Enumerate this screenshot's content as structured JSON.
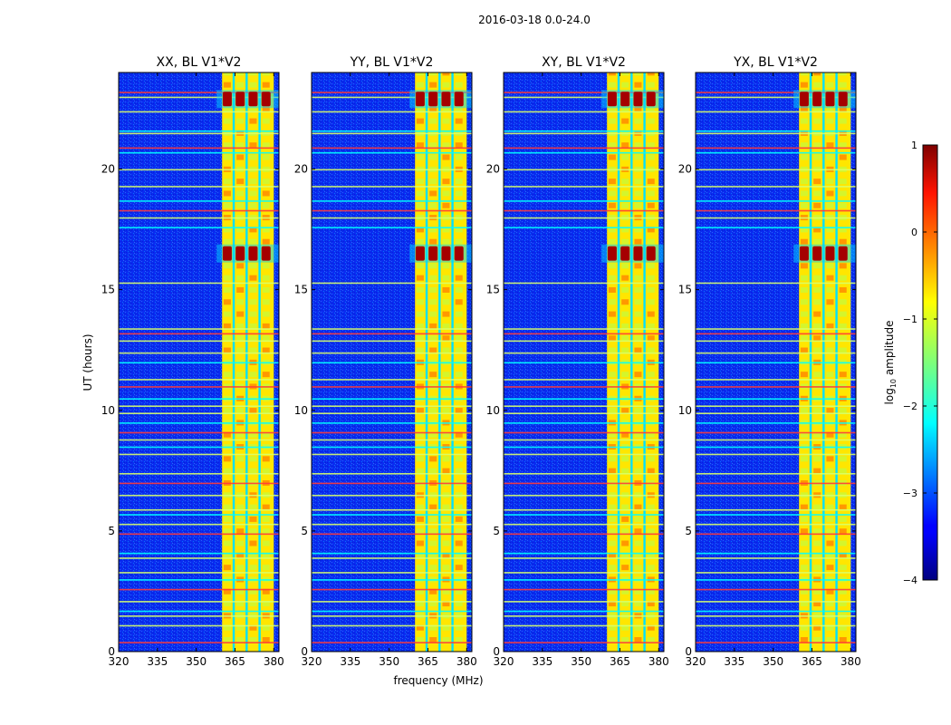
{
  "chart_data": {
    "type": "heatmap",
    "suptitle": "2016-03-18 0.0-24.0",
    "xlabel": "frequency (MHz)",
    "ylabel": "UT (hours)",
    "xlim": [
      320,
      382
    ],
    "ylim": [
      0,
      24
    ],
    "x_ticks": [
      320,
      335,
      350,
      365,
      380
    ],
    "y_ticks": [
      0,
      5,
      10,
      15,
      20
    ],
    "panels": [
      {
        "title": "XX, BL V1*V2",
        "burst_hours": [
          16.2,
          16.8
        ]
      },
      {
        "title": "YY, BL V1*V2",
        "burst_hours": [
          16.2,
          16.8
        ]
      },
      {
        "title": "XY, BL V1*V2",
        "burst_hours": [
          16.2,
          16.8
        ]
      },
      {
        "title": "YX, BL V1*V2",
        "burst_hours": [
          16.2,
          16.8
        ]
      }
    ],
    "active_band_mhz": [
      360,
      380
    ],
    "band_channels_mhz": [
      362,
      367,
      372,
      377
    ],
    "top_burst_hours": [
      22.6,
      23.2
    ],
    "rfi_lines_hours": [
      0.4,
      1.1,
      1.5,
      1.7,
      2.1,
      2.6,
      3.0,
      3.3,
      3.9,
      4.1,
      4.9,
      5.3,
      5.7,
      5.9,
      6.5,
      7.0,
      7.4,
      8.2,
      8.5,
      8.8,
      9.1,
      9.5,
      9.9,
      10.2,
      10.5,
      11.0,
      11.3,
      12.0,
      12.4,
      12.9,
      13.2,
      13.4,
      15.3,
      17.6,
      18.0,
      18.3,
      18.7,
      19.3,
      20.0,
      20.7,
      20.9,
      21.5,
      21.6,
      22.4,
      23.0,
      23.2
    ],
    "colorbar": {
      "label": "log10 amplitude",
      "label_main": "log",
      "label_sub": "10",
      "label_rest": " amplitude",
      "min": -4,
      "max": 1,
      "ticks": [
        1,
        0,
        -1,
        -2,
        -3,
        -4
      ],
      "tick_labels": [
        "1",
        "0",
        "−1",
        "−2",
        "−3",
        "−4"
      ],
      "colormap": "jet"
    }
  }
}
